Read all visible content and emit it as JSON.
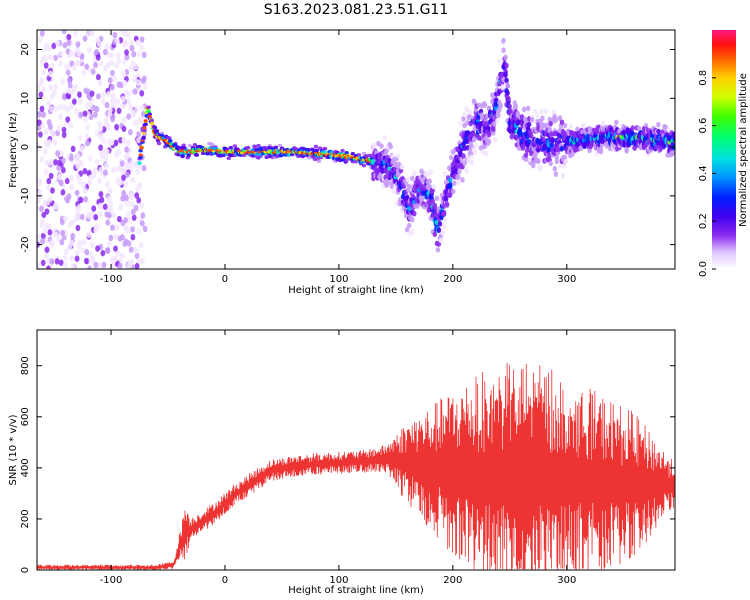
{
  "figure": {
    "title": "S163.2023.081.23.51.G11"
  },
  "colors": {
    "snr_line": "#ee3333",
    "colormap": [
      "#ffffff",
      "#f0e0ff",
      "#d8b4fe",
      "#8b2cf0",
      "#5a00e0",
      "#0010ff",
      "#0090ff",
      "#00e0e0",
      "#00ff70",
      "#b0ff00",
      "#ffe000",
      "#ff7000",
      "#ff1010",
      "#ff2080"
    ]
  },
  "chart_data": [
    {
      "type": "heatmap",
      "title": "",
      "xlabel": "Height of straight line (km)",
      "ylabel": "Frequency (Hz)",
      "xlim": [
        -165,
        395
      ],
      "ylim": [
        -25,
        24
      ],
      "xticks": [
        "-100",
        "0",
        "100",
        "200",
        "300"
      ],
      "yticks": [
        "-20",
        "-10",
        "0",
        "10",
        "20"
      ],
      "colorbar": {
        "label": "Normalized spectral amplitude",
        "range": [
          0,
          1
        ],
        "ticks": [
          "0.0",
          "0.2",
          "0.4",
          "0.6",
          "0.8"
        ]
      },
      "ridge": {
        "x": [
          -75,
          -68,
          -62,
          -58,
          -50,
          -40,
          -30,
          -20,
          0,
          30,
          60,
          90,
          110,
          130,
          145,
          155,
          162,
          170,
          180,
          187,
          195,
          205,
          220,
          232,
          240,
          245,
          250,
          258,
          270,
          300,
          330,
          360,
          395
        ],
        "y": [
          -3,
          8,
          3,
          2,
          1,
          -1,
          -1,
          -0.5,
          -1,
          -1,
          -1,
          -1.5,
          -2,
          -3,
          -4,
          -8,
          -13,
          -8,
          -10,
          -17,
          -9,
          -2,
          5,
          4,
          10,
          18,
          5,
          3,
          1,
          1,
          2,
          2,
          1
        ]
      }
    },
    {
      "type": "line",
      "title": "",
      "xlabel": "Height of straight line (km)",
      "ylabel": "SNR (10 * v/v)",
      "xlim": [
        -165,
        395
      ],
      "ylim": [
        0,
        940
      ],
      "xticks": [
        "-100",
        "0",
        "100",
        "200",
        "300"
      ],
      "yticks": [
        "0",
        "200",
        "400",
        "600",
        "800"
      ],
      "series": [
        {
          "name": "",
          "envelope": {
            "x": [
              -165,
              -60,
              -45,
              -38,
              -35,
              -30,
              -20,
              -10,
              0,
              10,
              20,
              30,
              40,
              60,
              80,
              100,
              120,
              140,
              160,
              180,
              200,
              220,
              240,
              260,
              280,
              300,
              320,
              340,
              360,
              380,
              395
            ],
            "center": [
              10,
              10,
              20,
              120,
              150,
              160,
              190,
              220,
              260,
              300,
              330,
              360,
              390,
              405,
              415,
              420,
              425,
              435,
              420,
              400,
              380,
              370,
              360,
              370,
              360,
              350,
              350,
              340,
              330,
              340,
              330
            ],
            "amplitude": [
              10,
              10,
              15,
              60,
              110,
              40,
              40,
              40,
              40,
              40,
              40,
              40,
              40,
              40,
              40,
              40,
              40,
              50,
              150,
              220,
              300,
              360,
              400,
              420,
              400,
              380,
              330,
              300,
              260,
              150,
              80
            ]
          }
        }
      ]
    }
  ]
}
